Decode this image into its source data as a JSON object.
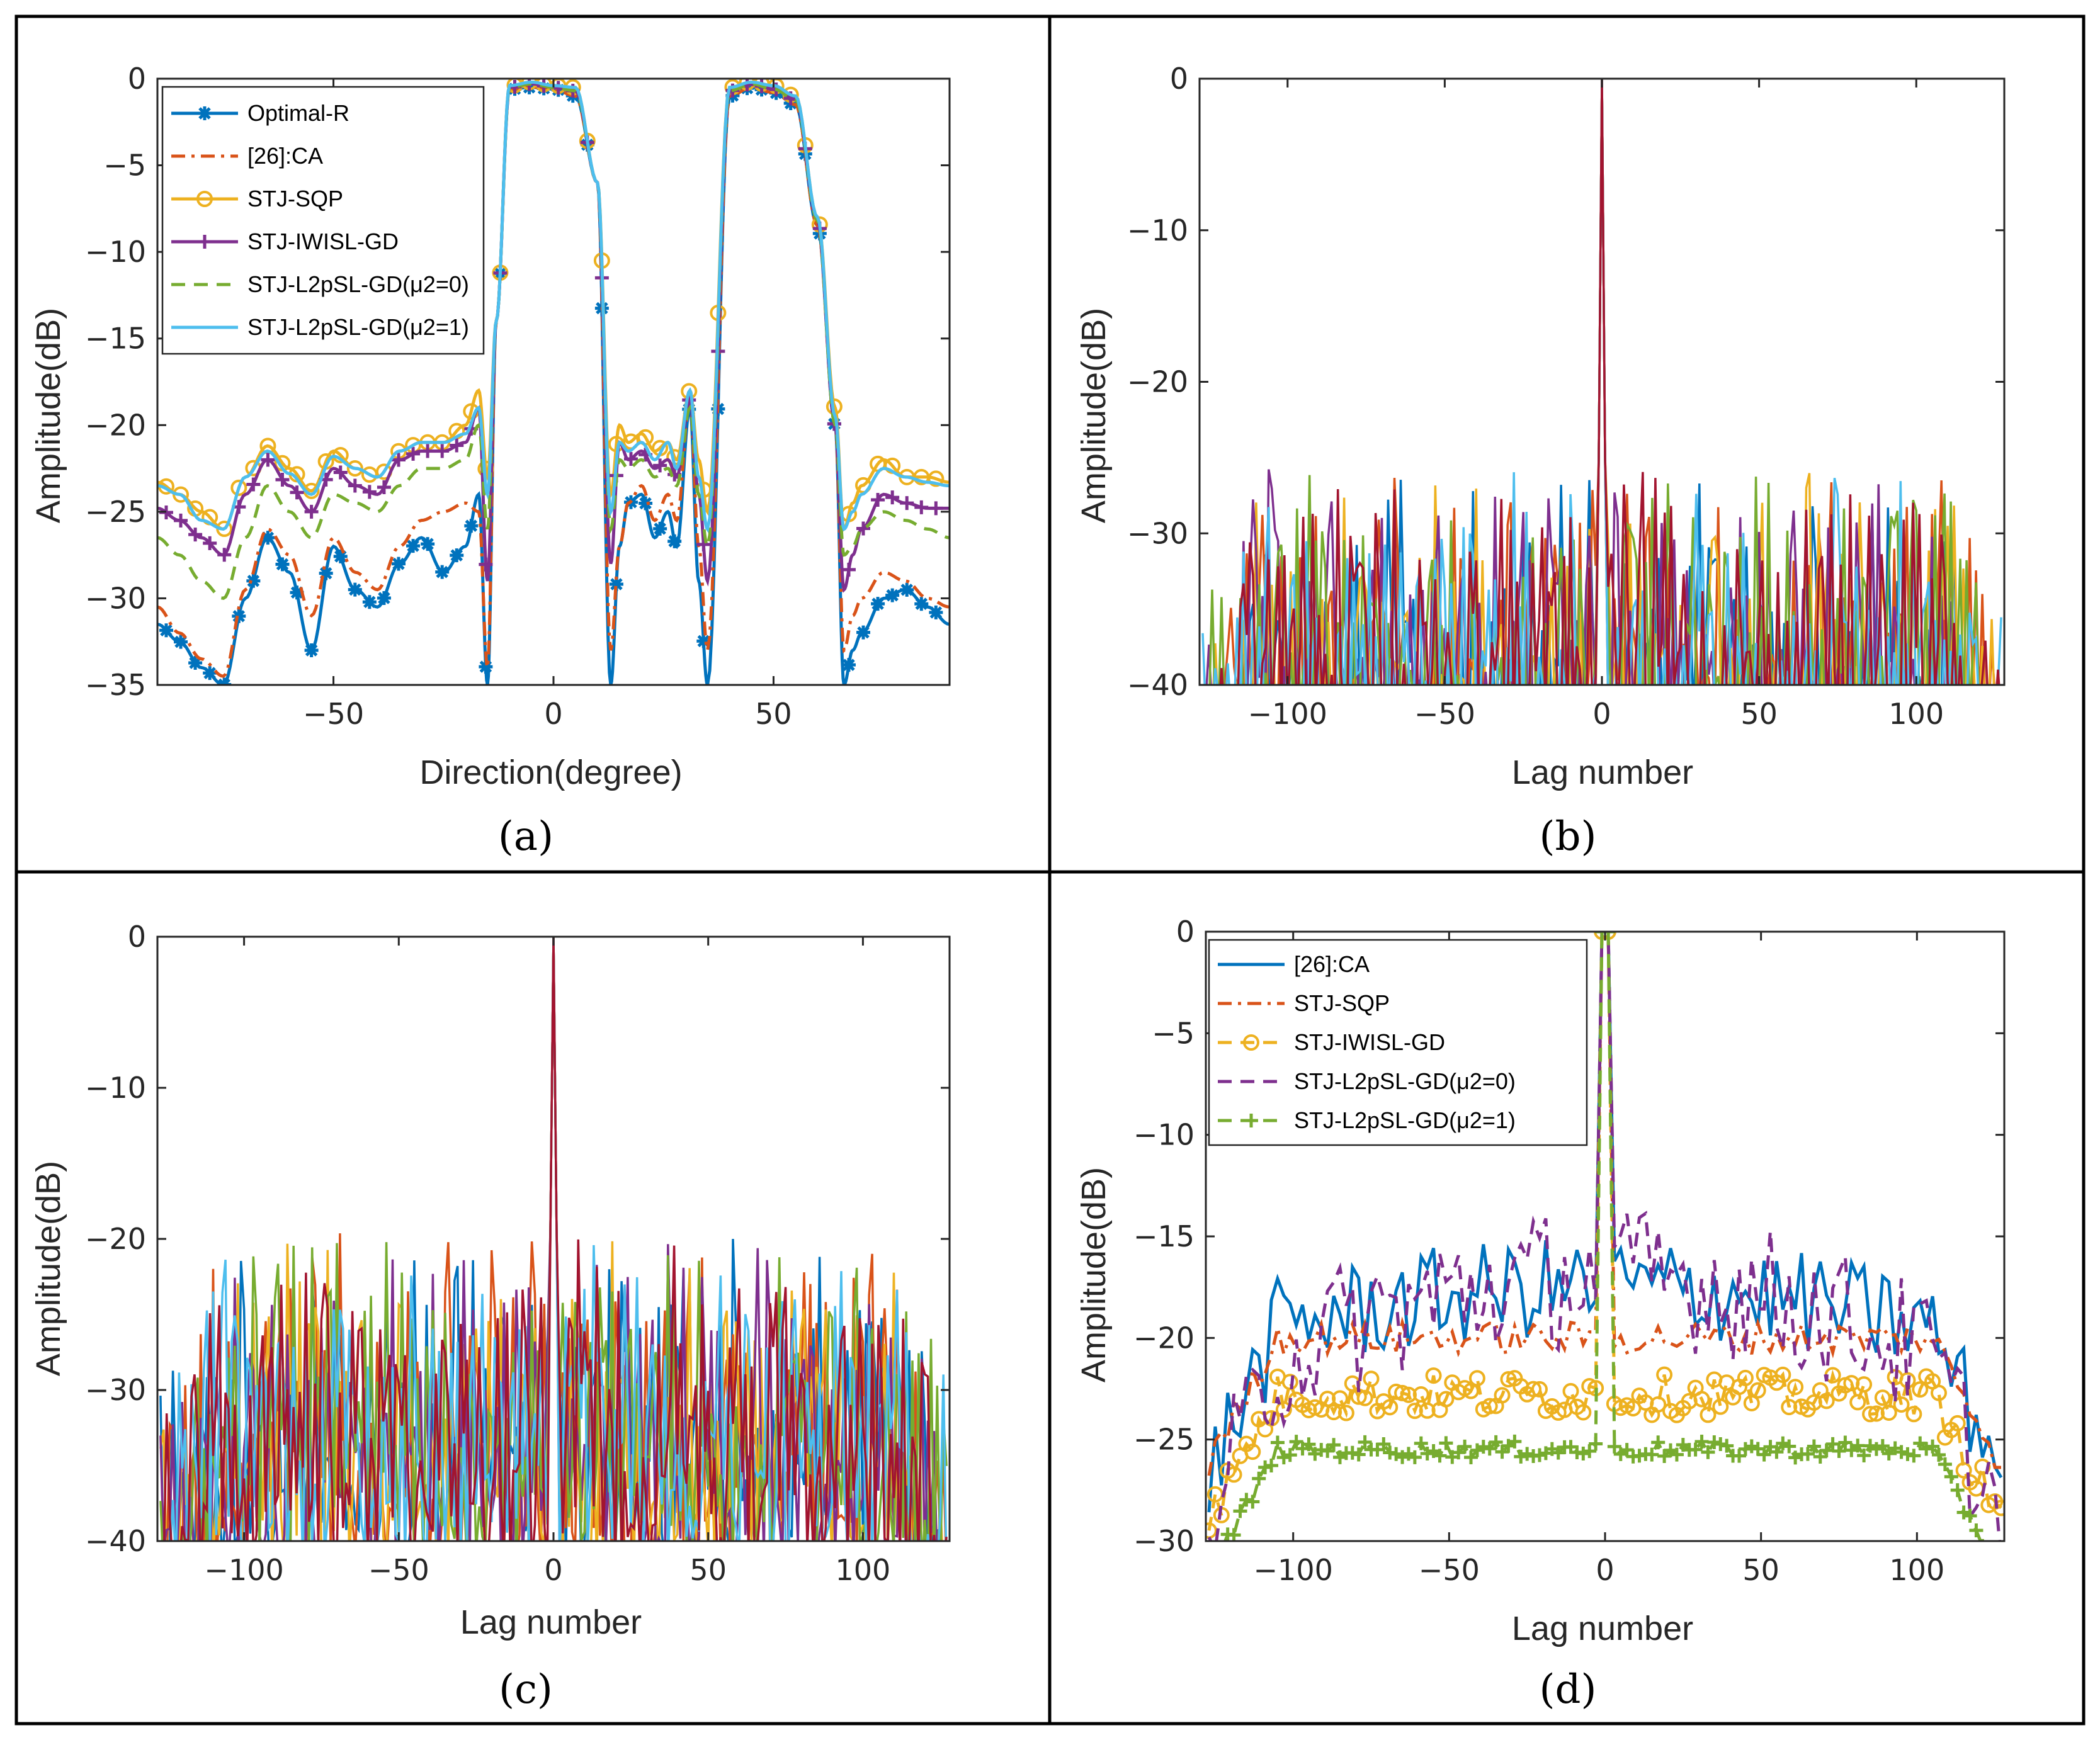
{
  "colors": {
    "blue": "#0072BD",
    "orange": "#D95319",
    "yellow": "#EDB120",
    "purple": "#7E2F8E",
    "green": "#77AC30",
    "cyan": "#4DBEEE",
    "red": "#A2142F"
  },
  "chart_data": [
    {
      "id": "a",
      "panel_label": "(a)",
      "type": "line",
      "xlabel": "Direction(degree)",
      "ylabel": "Amplitude(dB)",
      "xlim": [
        -90,
        90
      ],
      "ylim": [
        -35,
        0
      ],
      "xticks": [
        -50,
        0,
        50
      ],
      "yticks": [
        0,
        -5,
        -10,
        -15,
        -20,
        -25,
        -30,
        -35
      ],
      "xtick_labels": [
        "−50",
        "0",
        "50"
      ],
      "ytick_labels": [
        "0",
        "−5",
        "−10",
        "−15",
        "−20",
        "−25",
        "−30",
        "−35"
      ],
      "legend": [
        "Optimal-R",
        "[26]:CA",
        "STJ-SQP",
        "STJ-IWISL-GD",
        "STJ-L2pSL-GD(μ2=0)",
        "STJ-L2pSL-GD(μ2=1)"
      ],
      "series": [
        {
          "name": "Optimal-R",
          "color": "blue",
          "marker": "asterisk",
          "style": "solid",
          "x": [
            -90,
            -85,
            -80,
            -75,
            -70,
            -65,
            -60,
            -55,
            -50,
            -45,
            -40,
            -35,
            -30,
            -25,
            -20,
            -17,
            -15,
            -13,
            -10,
            -5,
            0,
            5,
            10,
            13,
            15,
            17,
            20,
            23,
            26,
            28,
            31,
            33,
            35,
            40,
            45,
            50,
            55,
            60,
            64,
            66,
            68,
            70,
            75,
            80,
            85,
            90
          ],
          "y": [
            -31.5,
            -32.5,
            -34,
            -35,
            -30,
            -26.5,
            -28.5,
            -33,
            -27,
            -29.5,
            -30.5,
            -28,
            -26.5,
            -28.5,
            -27,
            -24,
            -35,
            -14,
            -0.6,
            -0.5,
            -0.6,
            -1,
            -6,
            -35,
            -27,
            -24.5,
            -24,
            -26.5,
            -25,
            -27,
            -19,
            -29,
            -35,
            -1,
            -0.5,
            -0.8,
            -1.5,
            -8.5,
            -20,
            -35,
            -33,
            -32,
            -30,
            -29.5,
            -30.5,
            -31.5
          ]
        },
        {
          "name": "[26]:CA",
          "color": "orange",
          "marker": "",
          "style": "dashdot",
          "x": [
            -90,
            -85,
            -80,
            -75,
            -70,
            -65,
            -60,
            -55,
            -50,
            -45,
            -40,
            -35,
            -30,
            -25,
            -20,
            -17,
            -15,
            -13,
            -10,
            -5,
            0,
            5,
            10,
            13,
            15,
            17,
            20,
            23,
            26,
            28,
            31,
            33,
            35,
            40,
            45,
            50,
            55,
            60,
            64,
            66,
            68,
            70,
            75,
            80,
            85,
            90
          ],
          "y": [
            -30.5,
            -32,
            -33.5,
            -34.5,
            -29.5,
            -26,
            -27.5,
            -31,
            -26.5,
            -28.5,
            -29.5,
            -27,
            -25.5,
            -25,
            -24.5,
            -25,
            -34,
            -14,
            -0.6,
            -0.5,
            -0.6,
            -1,
            -6,
            -33,
            -27,
            -24.5,
            -23.5,
            -25.5,
            -24,
            -25.5,
            -18.5,
            -27,
            -33,
            -1,
            -0.5,
            -0.8,
            -1.5,
            -8.5,
            -20,
            -33,
            -31,
            -30,
            -28.5,
            -29,
            -30,
            -30.5
          ]
        },
        {
          "name": "STJ-SQP",
          "color": "yellow",
          "marker": "circle",
          "style": "solid",
          "x": [
            -90,
            -85,
            -80,
            -75,
            -70,
            -65,
            -60,
            -55,
            -50,
            -45,
            -40,
            -35,
            -30,
            -25,
            -20,
            -17,
            -15,
            -13,
            -10,
            -5,
            0,
            5,
            10,
            13,
            15,
            17,
            20,
            23,
            26,
            28,
            31,
            33,
            35,
            40,
            45,
            50,
            55,
            60,
            64,
            66,
            68,
            70,
            75,
            80,
            85,
            90
          ],
          "y": [
            -23.3,
            -24,
            -25,
            -26,
            -23,
            -21.2,
            -22.5,
            -23.8,
            -21.5,
            -22.5,
            -23,
            -21.5,
            -21,
            -21,
            -20,
            -18,
            -23,
            -14,
            -0.4,
            -0.2,
            -0.4,
            -0.5,
            -6,
            -24,
            -20,
            -21,
            -20.5,
            -21.5,
            -21,
            -22,
            -18,
            -22,
            -25,
            -0.5,
            -0.2,
            -0.4,
            -1,
            -8,
            -19,
            -26,
            -24.5,
            -23.5,
            -22,
            -23,
            -23,
            -23.3
          ]
        },
        {
          "name": "STJ-IWISL-GD",
          "color": "purple",
          "marker": "plus",
          "style": "solid",
          "x": [
            -90,
            -85,
            -80,
            -75,
            -70,
            -65,
            -60,
            -55,
            -50,
            -45,
            -40,
            -35,
            -30,
            -25,
            -20,
            -17,
            -15,
            -13,
            -10,
            -5,
            0,
            5,
            10,
            13,
            15,
            17,
            20,
            23,
            26,
            28,
            31,
            33,
            35,
            40,
            45,
            50,
            55,
            60,
            64,
            66,
            68,
            70,
            75,
            80,
            85,
            90
          ],
          "y": [
            -24.8,
            -25.5,
            -26.5,
            -27.5,
            -24,
            -22,
            -23.5,
            -25,
            -22.5,
            -23.5,
            -24,
            -22,
            -21.5,
            -21.5,
            -21,
            -19,
            -29,
            -14,
            -0.5,
            -0.3,
            -0.5,
            -0.7,
            -6,
            -28,
            -21,
            -22,
            -21.5,
            -22.5,
            -22,
            -23,
            -18.5,
            -24,
            -29,
            -0.7,
            -0.3,
            -0.6,
            -1.2,
            -8.2,
            -20,
            -29.5,
            -27.5,
            -26,
            -24,
            -24.5,
            -24.8,
            -24.8
          ]
        },
        {
          "name": "STJ-L2pSL-GD(μ2=0)",
          "color": "green",
          "marker": "",
          "style": "dashed",
          "x": [
            -90,
            -85,
            -80,
            -75,
            -70,
            -65,
            -60,
            -55,
            -50,
            -45,
            -40,
            -35,
            -30,
            -25,
            -20,
            -17,
            -15,
            -13,
            -10,
            -5,
            0,
            5,
            10,
            13,
            15,
            17,
            20,
            23,
            26,
            28,
            31,
            33,
            35,
            40,
            45,
            50,
            55,
            60,
            64,
            66,
            68,
            70,
            75,
            80,
            85,
            90
          ],
          "y": [
            -26.5,
            -27.5,
            -29,
            -30,
            -26.5,
            -23.5,
            -25,
            -26.5,
            -24,
            -24.5,
            -25,
            -23.5,
            -22.5,
            -22.5,
            -22,
            -20,
            -26,
            -14,
            -0.5,
            -0.3,
            -0.5,
            -0.7,
            -6,
            -26,
            -22,
            -22.5,
            -22,
            -23,
            -22.5,
            -23.5,
            -19,
            -24,
            -27,
            -0.7,
            -0.3,
            -0.6,
            -1.2,
            -8.2,
            -20,
            -27.5,
            -27,
            -26,
            -25,
            -25.5,
            -26,
            -26.5
          ]
        },
        {
          "name": "STJ-L2pSL-GD(μ2=1)",
          "color": "cyan",
          "marker": "",
          "style": "solid",
          "x": [
            -90,
            -85,
            -80,
            -75,
            -70,
            -65,
            -60,
            -55,
            -50,
            -45,
            -40,
            -35,
            -30,
            -25,
            -20,
            -17,
            -15,
            -13,
            -10,
            -5,
            0,
            5,
            10,
            13,
            15,
            17,
            20,
            23,
            26,
            28,
            31,
            33,
            35,
            40,
            45,
            50,
            55,
            60,
            64,
            66,
            68,
            70,
            75,
            80,
            85,
            90
          ],
          "y": [
            -23.5,
            -24,
            -25.5,
            -26,
            -23,
            -21.5,
            -22.8,
            -24,
            -21.8,
            -22.5,
            -23,
            -21.5,
            -21,
            -21,
            -20.5,
            -19,
            -24,
            -14,
            -0.4,
            -0.2,
            -0.4,
            -0.5,
            -6,
            -25,
            -21,
            -21.5,
            -21,
            -22,
            -21,
            -22.5,
            -18,
            -23,
            -26,
            -0.5,
            -0.2,
            -0.4,
            -1,
            -8,
            -19.5,
            -26,
            -25,
            -24,
            -22.5,
            -23,
            -23.3,
            -23.5
          ]
        }
      ]
    },
    {
      "id": "b",
      "panel_label": "(b)",
      "type": "line",
      "xlabel": "Lag number",
      "ylabel": "Amplitude(dB)",
      "xlim": [
        -128,
        128
      ],
      "ylim": [
        -40,
        0
      ],
      "xticks": [
        -100,
        -50,
        0,
        50,
        100
      ],
      "yticks": [
        0,
        -10,
        -20,
        -30,
        -40
      ],
      "xtick_labels": [
        "−100",
        "−50",
        "0",
        "50",
        "100"
      ],
      "ytick_labels": [
        "0",
        "−10",
        "−20",
        "−30",
        "−40"
      ],
      "description_values": {
        "mainlobe_peak": 0,
        "sidelobe_envelope": -25.5,
        "lags": [
          -127,
          127
        ],
        "series_count": 7
      }
    },
    {
      "id": "c",
      "panel_label": "(c)",
      "type": "line",
      "xlabel": "Lag number",
      "ylabel": "Amplitude(dB)",
      "xlim": [
        -128,
        128
      ],
      "ylim": [
        -40,
        0
      ],
      "xticks": [
        -100,
        -50,
        0,
        50,
        100
      ],
      "yticks": [
        0,
        -10,
        -20,
        -30,
        -40
      ],
      "xtick_labels": [
        "−100",
        "−50",
        "0",
        "50",
        "100"
      ],
      "ytick_labels": [
        "0",
        "−10",
        "−20",
        "−30",
        "−40"
      ],
      "description_values": {
        "mainlobe_peak": 0,
        "sidelobe_envelope": -19.5,
        "lags": [
          -127,
          127
        ],
        "series_count": 7
      }
    },
    {
      "id": "d",
      "panel_label": "(d)",
      "type": "line",
      "xlabel": "Lag number",
      "ylabel": "Amplitude(dB)",
      "xlim": [
        -128,
        128
      ],
      "ylim": [
        -30,
        0
      ],
      "xticks": [
        -100,
        -50,
        0,
        50,
        100
      ],
      "yticks": [
        0,
        -5,
        -10,
        -15,
        -20,
        -25,
        -30
      ],
      "xtick_labels": [
        "−100",
        "−50",
        "0",
        "50",
        "100"
      ],
      "ytick_labels": [
        "0",
        "−5",
        "−10",
        "−15",
        "−20",
        "−25",
        "−30"
      ],
      "legend": [
        "[26]:CA",
        "STJ-SQP",
        "STJ-IWISL-GD",
        "STJ-L2pSL-GD(μ2=0)",
        "STJ-L2pSL-GD(μ2=1)"
      ],
      "series": [
        {
          "name": "[26]:CA",
          "color": "blue",
          "style": "solid",
          "marker": "",
          "level": -17.5,
          "spread": 2.5,
          "edge": -19.5
        },
        {
          "name": "STJ-SQP",
          "color": "orange",
          "style": "dashdot",
          "marker": "",
          "level": -20,
          "spread": 0.8,
          "edge": -21.5
        },
        {
          "name": "STJ-IWISL-GD",
          "color": "yellow",
          "style": "dashed",
          "marker": "circle",
          "level": -22.8,
          "spread": 1.0,
          "edge": -24
        },
        {
          "name": "STJ-L2pSL-GD(μ2=0)",
          "color": "purple",
          "style": "dashed",
          "marker": "",
          "level": -19,
          "spread": 3.5,
          "edge": -22
        },
        {
          "name": "STJ-L2pSL-GD(μ2=1)",
          "color": "green",
          "style": "dashed",
          "marker": "plus",
          "level": -25.5,
          "spread": 0.4,
          "edge": -26
        }
      ]
    }
  ]
}
